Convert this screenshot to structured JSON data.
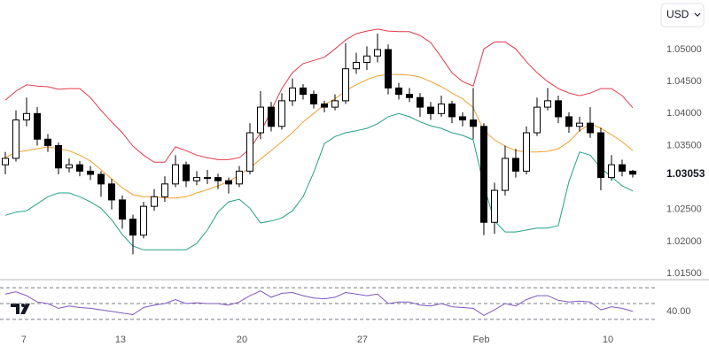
{
  "chart_data": {
    "type": "candlestick",
    "currency": "USD",
    "up_color": "#ffffff",
    "down_color": "#000000",
    "wick_color": "#000000",
    "ohlc": [
      [
        1.032,
        1.034,
        1.0305,
        1.033
      ],
      [
        1.033,
        1.0405,
        1.0325,
        1.039
      ],
      [
        1.039,
        1.0425,
        1.038,
        1.04
      ],
      [
        1.04,
        1.041,
        1.035,
        1.036
      ],
      [
        1.036,
        1.0368,
        1.034,
        1.035
      ],
      [
        1.035,
        1.0355,
        1.0305,
        1.0315
      ],
      [
        1.0315,
        1.033,
        1.0308,
        1.032
      ],
      [
        1.032,
        1.0326,
        1.0302,
        1.031
      ],
      [
        1.031,
        1.0318,
        1.0296,
        1.0305
      ],
      [
        1.0305,
        1.031,
        1.027,
        1.029
      ],
      [
        1.029,
        1.0298,
        1.025,
        1.0265
      ],
      [
        1.0265,
        1.0272,
        1.022,
        1.0235
      ],
      [
        1.0235,
        1.0242,
        1.018,
        1.021
      ],
      [
        1.021,
        1.0262,
        1.0205,
        1.0255
      ],
      [
        1.0255,
        1.0282,
        1.0248,
        1.027
      ],
      [
        1.027,
        1.0302,
        1.0262,
        1.029
      ],
      [
        1.029,
        1.0335,
        1.0285,
        1.032
      ],
      [
        1.032,
        1.0325,
        1.0285,
        1.0295
      ],
      [
        1.0295,
        1.031,
        1.0288,
        1.03
      ],
      [
        1.03,
        1.0312,
        1.029,
        1.03
      ],
      [
        1.03,
        1.0306,
        1.0282,
        1.0295
      ],
      [
        1.0295,
        1.03,
        1.0275,
        1.029
      ],
      [
        1.029,
        1.0318,
        1.0285,
        1.031
      ],
      [
        1.031,
        1.0385,
        1.0305,
        1.037
      ],
      [
        1.037,
        1.0435,
        1.036,
        1.041
      ],
      [
        1.041,
        1.0418,
        1.0372,
        1.038
      ],
      [
        1.038,
        1.0432,
        1.0375,
        1.042
      ],
      [
        1.042,
        1.0455,
        1.0412,
        1.044
      ],
      [
        1.044,
        1.0446,
        1.0422,
        1.043
      ],
      [
        1.043,
        1.0436,
        1.0408,
        1.0415
      ],
      [
        1.0415,
        1.042,
        1.0402,
        1.041
      ],
      [
        1.041,
        1.043,
        1.0405,
        1.042
      ],
      [
        1.042,
        1.051,
        1.0415,
        1.047
      ],
      [
        1.047,
        1.0495,
        1.0462,
        1.048
      ],
      [
        1.048,
        1.0505,
        1.0468,
        1.049
      ],
      [
        1.049,
        1.0525,
        1.048,
        1.05
      ],
      [
        1.05,
        1.0508,
        1.043,
        1.044
      ],
      [
        1.044,
        1.0448,
        1.0422,
        1.043
      ],
      [
        1.043,
        1.044,
        1.0418,
        1.0425
      ],
      [
        1.0425,
        1.0432,
        1.0395,
        1.041
      ],
      [
        1.041,
        1.0418,
        1.039,
        1.04
      ],
      [
        1.04,
        1.0428,
        1.0395,
        1.0415
      ],
      [
        1.0415,
        1.042,
        1.0385,
        1.0395
      ],
      [
        1.0395,
        1.0402,
        1.038,
        1.039
      ],
      [
        1.039,
        1.044,
        1.036,
        1.038
      ],
      [
        1.038,
        1.0385,
        1.021,
        1.023
      ],
      [
        1.023,
        1.0292,
        1.0212,
        1.028
      ],
      [
        1.028,
        1.035,
        1.0272,
        1.033
      ],
      [
        1.033,
        1.0345,
        1.03,
        1.031
      ],
      [
        1.031,
        1.038,
        1.0305,
        1.037
      ],
      [
        1.037,
        1.0425,
        1.0365,
        1.041
      ],
      [
        1.041,
        1.044,
        1.0405,
        1.042
      ],
      [
        1.042,
        1.0428,
        1.0385,
        1.0395
      ],
      [
        1.0395,
        1.0402,
        1.037,
        1.038
      ],
      [
        1.038,
        1.0395,
        1.0372,
        1.0385
      ],
      [
        1.0385,
        1.041,
        1.0362,
        1.037
      ],
      [
        1.037,
        1.0378,
        1.028,
        1.03
      ],
      [
        1.03,
        1.0335,
        1.0295,
        1.032
      ],
      [
        1.032,
        1.0328,
        1.0302,
        1.031
      ],
      [
        1.031,
        1.0312,
        1.03,
        1.03053
      ]
    ],
    "bands": {
      "upper": {
        "color": "#e23a4a",
        "values": [
          1.0421,
          1.0435,
          1.0445,
          1.0443,
          1.0442,
          1.0438,
          1.0439,
          1.0439,
          1.0425,
          1.0405,
          1.0387,
          1.037,
          1.0349,
          1.0335,
          1.0324,
          1.0324,
          1.0348,
          1.0342,
          1.0335,
          1.0331,
          1.0328,
          1.0328,
          1.0331,
          1.0345,
          1.037,
          1.0405,
          1.0439,
          1.0464,
          1.0478,
          1.0483,
          1.0488,
          1.0501,
          1.0515,
          1.0525,
          1.0529,
          1.0532,
          1.0529,
          1.0528,
          1.0528,
          1.0522,
          1.0511,
          1.0488,
          1.0464,
          1.045,
          1.0443,
          1.0501,
          1.0512,
          1.0512,
          1.0501,
          1.0481,
          1.0464,
          1.045,
          1.0439,
          1.0432,
          1.0428,
          1.0432,
          1.0439,
          1.0439,
          1.0428,
          1.0409
        ]
      },
      "middle": {
        "color": "#f0a030",
        "values": [
          1.0331,
          1.034,
          1.0342,
          1.0345,
          1.0348,
          1.0345,
          1.0342,
          1.0335,
          1.0326,
          1.0312,
          1.0298,
          1.0284,
          1.0273,
          1.027,
          1.027,
          1.0268,
          1.0268,
          1.027,
          1.0276,
          1.0281,
          1.0287,
          1.0294,
          1.0304,
          1.0315,
          1.0329,
          1.0342,
          1.0356,
          1.037,
          1.0387,
          1.04,
          1.0414,
          1.0423,
          1.0436,
          1.0445,
          1.0453,
          1.0459,
          1.0461,
          1.0461,
          1.046,
          1.0457,
          1.045,
          1.0442,
          1.0432,
          1.0423,
          1.0409,
          1.0373,
          1.0359,
          1.0349,
          1.0342,
          1.034,
          1.034,
          1.0341,
          1.0345,
          1.0356,
          1.0373,
          1.0384,
          1.0377,
          1.0367,
          1.0356,
          1.0342
        ]
      },
      "lower": {
        "color": "#22a085",
        "values": [
          1.0241,
          1.0246,
          1.0248,
          1.0259,
          1.027,
          1.0276,
          1.0276,
          1.027,
          1.0262,
          1.0252,
          1.0234,
          1.0211,
          1.0193,
          1.0187,
          1.0187,
          1.0187,
          1.0187,
          1.0187,
          1.0197,
          1.0218,
          1.0246,
          1.0262,
          1.0266,
          1.0252,
          1.0229,
          1.0232,
          1.0237,
          1.0248,
          1.027,
          1.0308,
          1.0353,
          1.0364,
          1.037,
          1.0373,
          1.0377,
          1.0384,
          1.0395,
          1.04,
          1.0395,
          1.0387,
          1.0381,
          1.0377,
          1.037,
          1.0366,
          1.0359,
          1.0287,
          1.0232,
          1.0215,
          1.0215,
          1.0218,
          1.0221,
          1.0221,
          1.0225,
          1.0294,
          1.034,
          1.0335,
          1.0315,
          1.0301,
          1.0287,
          1.0279
        ]
      }
    },
    "xlim": [
      -0.5,
      61.17
    ],
    "xticks": [
      {
        "value": 1.75,
        "label": "7"
      },
      {
        "value": 10.83,
        "label": "13"
      },
      {
        "value": 22.25,
        "label": "20"
      },
      {
        "value": 33.58,
        "label": "27"
      },
      {
        "value": 44.75,
        "label": "Feb"
      },
      {
        "value": 56.67,
        "label": "10"
      }
    ],
    "ylim": [
      1.01404,
      1.05775
    ],
    "yticks": [
      {
        "value": 1.05,
        "label": "1.05000"
      },
      {
        "value": 1.045,
        "label": "1.04500"
      },
      {
        "value": 1.04,
        "label": "1.04000"
      },
      {
        "value": 1.035,
        "label": "1.03500"
      },
      {
        "value": 1.025,
        "label": "1.02500"
      },
      {
        "value": 1.02,
        "label": "1.02000"
      },
      {
        "value": 1.015,
        "label": "1.01500"
      }
    ],
    "last_price": 1.03053,
    "rsi": {
      "color": "#7e57c2",
      "level_color": "#787b86",
      "ylim": [
        22,
        78
      ],
      "levels": [
        70,
        50,
        30
      ],
      "values": [
        62,
        65,
        60,
        52,
        50,
        44,
        47,
        45,
        44,
        42,
        40,
        38,
        36,
        45,
        48,
        50,
        55,
        50,
        51,
        50,
        50,
        48,
        52,
        60,
        66,
        58,
        63,
        64,
        60,
        57,
        56,
        58,
        64,
        62,
        60,
        62,
        50,
        52,
        52,
        48,
        47,
        50,
        46,
        45,
        44,
        35,
        42,
        50,
        47,
        55,
        60,
        60,
        54,
        52,
        53,
        52,
        42,
        46,
        44,
        40
      ],
      "current": {
        "value": 40,
        "label": "40.00"
      }
    }
  }
}
